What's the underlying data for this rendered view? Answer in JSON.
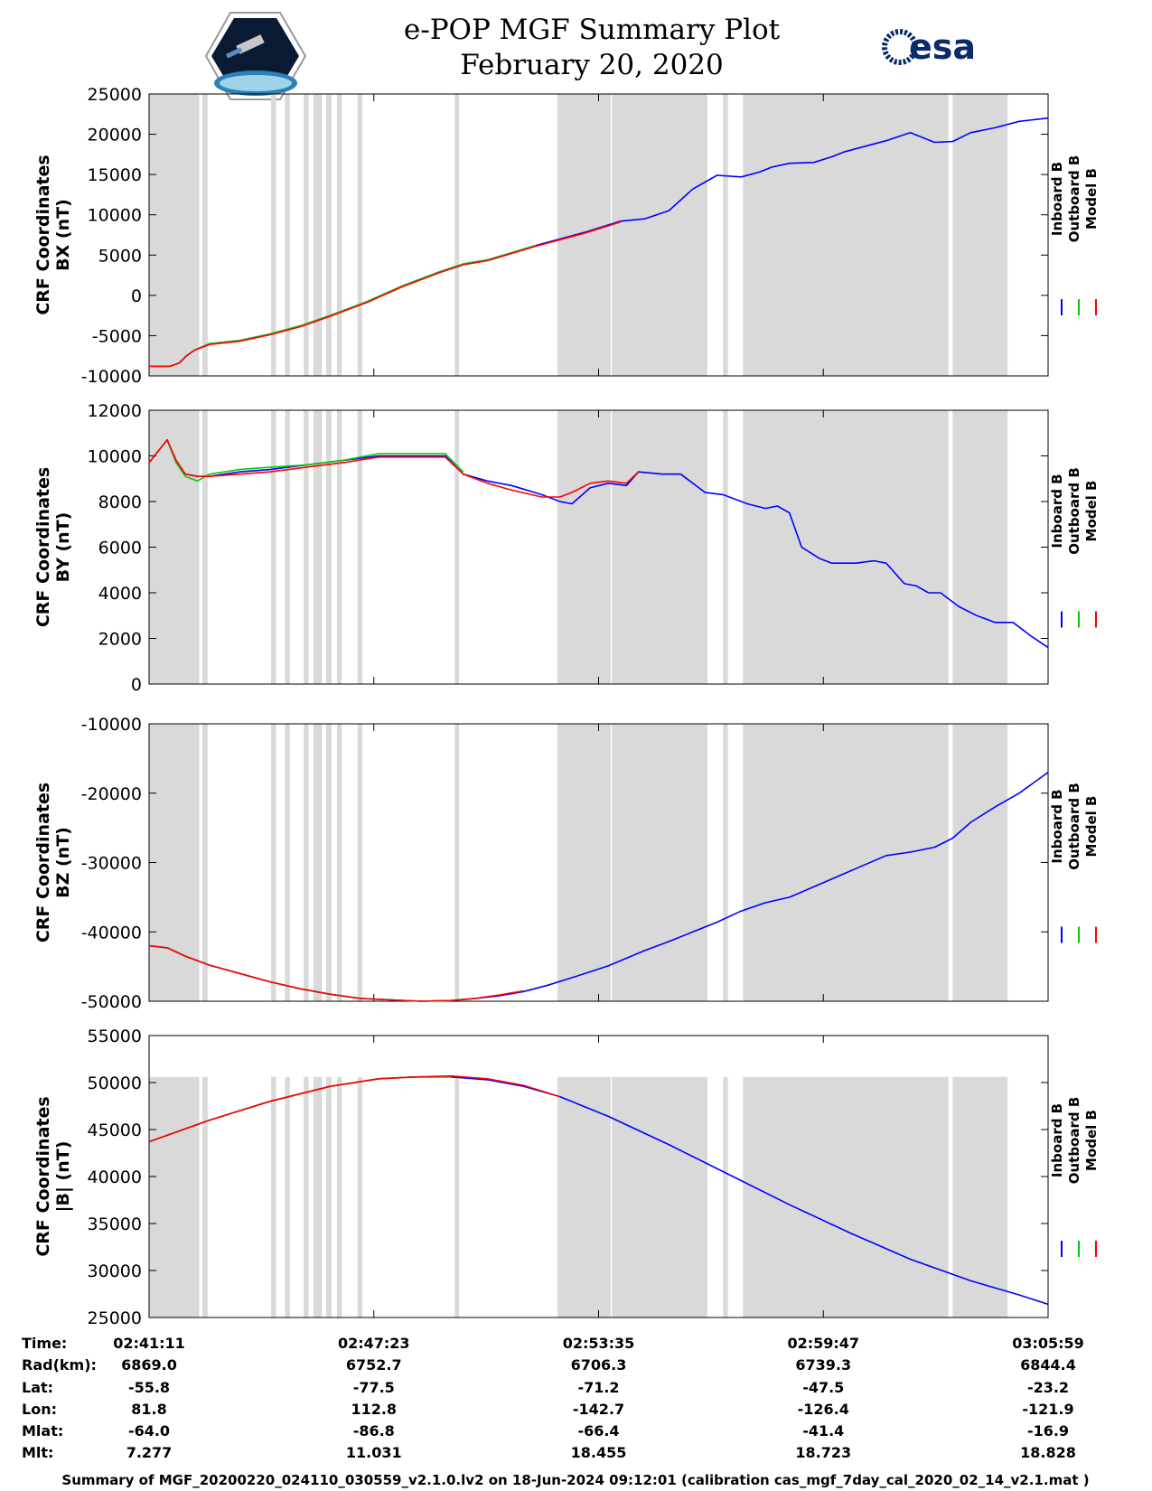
{
  "header": {
    "title": "e-POP MGF Summary Plot",
    "date": "February 20, 2020",
    "left_logo": "cassiope-mission-logo",
    "right_logo_text": "esa"
  },
  "colors": {
    "inboard": "#0000ff",
    "outboard": "#00cc00",
    "model": "#ff0000",
    "shade": "#d9d9d9"
  },
  "legend": [
    "Inboard B",
    "Outboard B",
    "Model B"
  ],
  "chart_data": [
    {
      "type": "line",
      "title": "",
      "ylabel": [
        "CRF Coordinates",
        "BX (nT)"
      ],
      "ylim": [
        -10000,
        25000
      ],
      "yticks": [
        -10000,
        -5000,
        0,
        5000,
        10000,
        15000,
        20000,
        25000
      ],
      "xlim": [
        0,
        1488
      ],
      "series": [
        {
          "name": "Inboard B",
          "x": [
            0,
            20,
            35,
            50,
            62,
            75,
            100,
            150,
            200,
            250,
            300,
            360,
            420,
            480,
            520,
            560,
            640,
            720,
            780,
            820,
            860,
            900,
            940,
            980,
            1010,
            1030,
            1060,
            1100,
            1130,
            1150,
            1180,
            1220,
            1260,
            1300,
            1330,
            1360,
            1400,
            1440,
            1488
          ],
          "y": [
            -8800,
            -8800,
            -8800,
            -8400,
            -7500,
            -6800,
            -6000,
            -5600,
            -4800,
            -3800,
            -2500,
            -800,
            1200,
            2900,
            3900,
            4400,
            6200,
            7800,
            9200,
            9500,
            10500,
            13200,
            14900,
            14700,
            15300,
            15900,
            16400,
            16500,
            17200,
            17800,
            18400,
            19200,
            20200,
            19000,
            19100,
            20200,
            20800,
            21600,
            22000
          ]
        },
        {
          "name": "Outboard B",
          "x": [
            0,
            20,
            35,
            50,
            62,
            75,
            100,
            150,
            200,
            250,
            300,
            360,
            420,
            480,
            520,
            560,
            640
          ],
          "y": [
            -8800,
            -8800,
            -8800,
            -8400,
            -7500,
            -6800,
            -6000,
            -5600,
            -4800,
            -3800,
            -2500,
            -800,
            1200,
            2900,
            3900,
            4400,
            6200
          ]
        },
        {
          "name": "Model B",
          "x": [
            0,
            20,
            35,
            50,
            62,
            75,
            100,
            150,
            200,
            250,
            300,
            360,
            420,
            480,
            520,
            560,
            640,
            720,
            780
          ],
          "y": [
            -8800,
            -8800,
            -8800,
            -8400,
            -7500,
            -6800,
            -6100,
            -5700,
            -4900,
            -3900,
            -2600,
            -900,
            1100,
            2800,
            3800,
            4300,
            6100,
            7700,
            9100
          ]
        }
      ]
    },
    {
      "type": "line",
      "title": "",
      "ylabel": [
        "CRF Coordinates",
        "BY (nT)"
      ],
      "ylim": [
        0,
        12000
      ],
      "yticks": [
        0,
        2000,
        4000,
        6000,
        8000,
        10000,
        12000
      ],
      "xlim": [
        0,
        1488
      ],
      "series": [
        {
          "name": "Inboard B",
          "x": [
            0,
            15,
            30,
            45,
            60,
            80,
            100,
            150,
            200,
            260,
            320,
            380,
            430,
            490,
            520,
            560,
            600,
            650,
            680,
            700,
            730,
            760,
            790,
            810,
            850,
            880,
            920,
            950,
            990,
            1020,
            1040,
            1060,
            1080,
            1110,
            1130,
            1170,
            1200,
            1220,
            1250,
            1270,
            1290,
            1310,
            1340,
            1370,
            1400,
            1430,
            1460,
            1488
          ],
          "y": [
            9700,
            10200,
            10700,
            9700,
            9200,
            9100,
            9100,
            9300,
            9400,
            9600,
            9800,
            10000,
            10000,
            10000,
            9200,
            8900,
            8700,
            8300,
            8000,
            7900,
            8600,
            8800,
            8700,
            9300,
            9200,
            9200,
            8400,
            8300,
            7900,
            7700,
            7800,
            7500,
            6000,
            5500,
            5300,
            5300,
            5400,
            5300,
            4400,
            4300,
            4000,
            4000,
            3400,
            3000,
            2700,
            2700,
            2100,
            1600
          ]
        },
        {
          "name": "Outboard B",
          "x": [
            0,
            15,
            30,
            45,
            60,
            80,
            100,
            150,
            200,
            260,
            320,
            380,
            430,
            490,
            520
          ],
          "y": [
            9700,
            10200,
            10700,
            9700,
            9100,
            8900,
            9200,
            9400,
            9500,
            9600,
            9800,
            10100,
            10100,
            10100,
            9300
          ]
        },
        {
          "name": "Model B",
          "x": [
            0,
            15,
            30,
            45,
            60,
            80,
            100,
            150,
            200,
            260,
            320,
            380,
            430,
            490,
            520,
            560,
            600,
            650,
            680,
            700,
            730,
            760,
            790,
            810
          ],
          "y": [
            9700,
            10200,
            10700,
            9800,
            9200,
            9100,
            9100,
            9200,
            9300,
            9500,
            9700,
            9950,
            9950,
            9950,
            9200,
            8800,
            8500,
            8200,
            8200,
            8400,
            8800,
            8900,
            8800,
            9300
          ]
        }
      ]
    },
    {
      "type": "line",
      "title": "",
      "ylabel": [
        "CRF Coordinates",
        "BZ (nT)"
      ],
      "ylim": [
        -50000,
        -10000
      ],
      "yticks": [
        -50000,
        -40000,
        -30000,
        -20000,
        -10000
      ],
      "xlim": [
        0,
        1488
      ],
      "series": [
        {
          "name": "Inboard B",
          "x": [
            0,
            30,
            60,
            100,
            150,
            200,
            250,
            300,
            350,
            400,
            450,
            500,
            540,
            580,
            620,
            660,
            700,
            760,
            820,
            860,
            900,
            940,
            980,
            1020,
            1060,
            1100,
            1140,
            1180,
            1220,
            1260,
            1300,
            1330,
            1360,
            1400,
            1440,
            1488
          ],
          "y": [
            -42000,
            -42300,
            -43500,
            -44800,
            -46000,
            -47200,
            -48200,
            -49000,
            -49600,
            -49800,
            -50000,
            -49900,
            -49600,
            -49200,
            -48600,
            -47700,
            -46600,
            -44900,
            -42700,
            -41400,
            -40000,
            -38600,
            -37000,
            -35800,
            -35000,
            -33500,
            -32000,
            -30500,
            -29000,
            -28500,
            -27800,
            -26500,
            -24200,
            -22000,
            -20000,
            -17000
          ]
        },
        {
          "name": "Outboard B",
          "x": [
            0,
            30,
            60,
            100,
            150,
            200,
            250,
            300,
            350,
            400,
            450,
            500,
            540
          ],
          "y": [
            -42000,
            -42300,
            -43500,
            -44800,
            -46000,
            -47200,
            -48200,
            -49000,
            -49600,
            -49800,
            -50000,
            -49900,
            -49600
          ]
        },
        {
          "name": "Model B",
          "x": [
            0,
            30,
            60,
            100,
            150,
            200,
            250,
            300,
            350,
            400,
            450,
            500,
            540,
            580,
            620
          ],
          "y": [
            -42000,
            -42300,
            -43500,
            -44800,
            -46000,
            -47200,
            -48200,
            -49000,
            -49600,
            -49800,
            -50000,
            -49900,
            -49600,
            -49100,
            -48500
          ]
        }
      ]
    },
    {
      "type": "line",
      "title": "",
      "ylabel": [
        "CRF Coordinates",
        "|B| (nT)"
      ],
      "ylim": [
        25000,
        55000
      ],
      "yticks": [
        25000,
        30000,
        35000,
        40000,
        45000,
        50000,
        55000
      ],
      "xlim": [
        0,
        1488
      ],
      "series": [
        {
          "name": "Inboard B",
          "x": [
            0,
            100,
            200,
            300,
            380,
            440,
            500,
            560,
            620,
            680,
            760,
            860,
            960,
            1060,
            1160,
            1260,
            1360,
            1440,
            1488
          ],
          "y": [
            43700,
            46000,
            48000,
            49600,
            50400,
            50600,
            50600,
            50300,
            49600,
            48500,
            46400,
            43400,
            40200,
            37000,
            34000,
            31200,
            28900,
            27400,
            26400
          ]
        },
        {
          "name": "Outboard B",
          "x": [
            0,
            100,
            200,
            300,
            380,
            440,
            500
          ],
          "y": [
            43700,
            46000,
            48000,
            49600,
            50400,
            50600,
            50600
          ]
        },
        {
          "name": "Model B",
          "x": [
            0,
            100,
            200,
            300,
            380,
            440,
            500,
            560,
            620,
            680
          ],
          "y": [
            43700,
            46000,
            48000,
            49600,
            50400,
            50600,
            50700,
            50400,
            49700,
            48500
          ]
        }
      ]
    }
  ],
  "shade_intervals": [
    [
      0,
      83
    ],
    [
      88,
      97
    ],
    [
      202,
      210
    ],
    [
      225,
      233
    ],
    [
      256,
      264
    ],
    [
      272,
      286
    ],
    [
      293,
      302
    ],
    [
      311,
      319
    ],
    [
      345,
      353
    ],
    [
      506,
      513
    ],
    [
      676,
      764
    ],
    [
      766,
      924
    ],
    [
      950,
      958
    ],
    [
      983,
      1103
    ],
    [
      1103,
      1323
    ],
    [
      1330,
      1421
    ]
  ],
  "xticks": [
    0,
    372,
    744,
    1116,
    1488
  ],
  "ephemeris": {
    "labels": [
      "Time:",
      "Rad(km):",
      "Lat:",
      "Lon:",
      "Mlat:",
      "Mlt:"
    ],
    "columns": [
      [
        "02:41:11",
        "6869.0",
        "-55.8",
        "81.8",
        "-64.0",
        "7.277"
      ],
      [
        "02:47:23",
        "6752.7",
        "-77.5",
        "112.8",
        "-86.8",
        "11.031"
      ],
      [
        "02:53:35",
        "6706.3",
        "-71.2",
        "-142.7",
        "-66.4",
        "18.455"
      ],
      [
        "02:59:47",
        "6739.3",
        "-47.5",
        "-126.4",
        "-41.4",
        "18.723"
      ],
      [
        "03:05:59",
        "6844.4",
        "-23.2",
        "-121.9",
        "-16.9",
        "18.828"
      ]
    ]
  },
  "footer": "Summary of MGF_20200220_024110_030559_v2.1.0.lv2 on 18-Jun-2024 09:12:01 (calibration cas_mgf_7day_cal_2020_02_14_v2.1.mat )"
}
